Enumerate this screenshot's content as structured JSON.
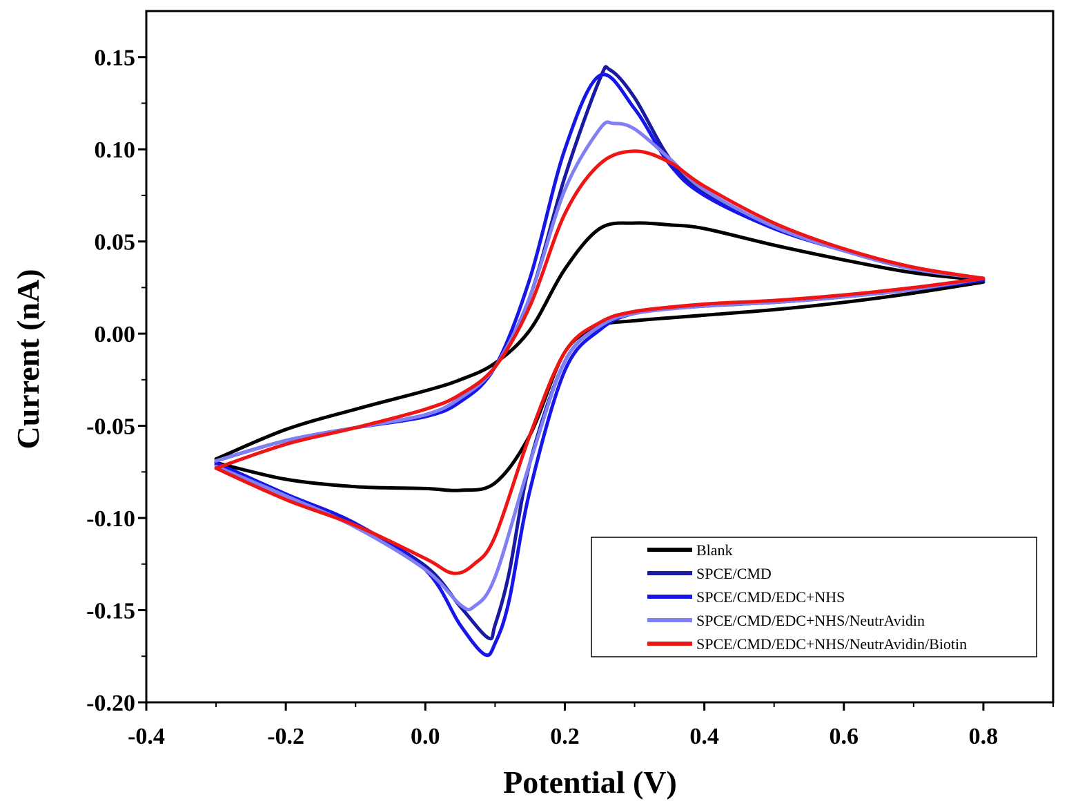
{
  "chart_data": {
    "type": "line",
    "xlabel": "Potential (V)",
    "ylabel": "Current (nA)",
    "xlim": [
      -0.4,
      0.9
    ],
    "ylim": [
      -0.2,
      0.175
    ],
    "x_ticks": [
      -0.4,
      -0.2,
      0.0,
      0.2,
      0.4,
      0.6,
      0.8
    ],
    "x_tick_labels": [
      "-0.4",
      "-0.2",
      "0.0",
      "0.2",
      "0.4",
      "0.6",
      "0.8"
    ],
    "y_ticks": [
      -0.2,
      -0.15,
      -0.1,
      -0.05,
      0.0,
      0.05,
      0.1,
      0.15
    ],
    "y_tick_labels": [
      "-0.20",
      "-0.15",
      "-0.10",
      "-0.05",
      "0.00",
      "0.05",
      "0.10",
      "0.15"
    ],
    "legend_position": "bottom-right",
    "grid": false,
    "series": [
      {
        "name": "Blank",
        "color": "#000000",
        "forward": {
          "x": [
            -0.3,
            -0.2,
            -0.1,
            0.0,
            0.05,
            0.1,
            0.15,
            0.2,
            0.25,
            0.3,
            0.35,
            0.4,
            0.5,
            0.6,
            0.7,
            0.8
          ],
          "y": [
            -0.068,
            -0.052,
            -0.041,
            -0.031,
            -0.025,
            -0.016,
            0.002,
            0.035,
            0.057,
            0.06,
            0.059,
            0.057,
            0.048,
            0.04,
            0.033,
            0.029
          ]
        },
        "reverse": {
          "x": [
            0.8,
            0.7,
            0.6,
            0.5,
            0.4,
            0.3,
            0.25,
            0.2,
            0.15,
            0.1,
            0.05,
            0.0,
            -0.1,
            -0.2,
            -0.3
          ],
          "y": [
            0.028,
            0.022,
            0.017,
            0.013,
            0.01,
            0.007,
            0.004,
            -0.01,
            -0.055,
            -0.081,
            -0.085,
            -0.084,
            -0.083,
            -0.079,
            -0.07
          ]
        }
      },
      {
        "name": "SPCE/CMD",
        "color": "#1a1aa0",
        "forward": {
          "x": [
            -0.3,
            -0.2,
            -0.1,
            0.0,
            0.05,
            0.1,
            0.15,
            0.2,
            0.25,
            0.265,
            0.3,
            0.35,
            0.4,
            0.5,
            0.6,
            0.7,
            0.8
          ],
          "y": [
            -0.069,
            -0.058,
            -0.051,
            -0.044,
            -0.035,
            -0.018,
            0.02,
            0.085,
            0.138,
            0.143,
            0.128,
            0.095,
            0.076,
            0.058,
            0.045,
            0.035,
            0.03
          ]
        },
        "reverse": {
          "x": [
            0.8,
            0.7,
            0.6,
            0.5,
            0.4,
            0.3,
            0.25,
            0.2,
            0.15,
            0.12,
            0.1,
            0.09,
            0.05,
            0.0,
            -0.1,
            -0.2,
            -0.3
          ],
          "y": [
            0.029,
            0.024,
            0.02,
            0.017,
            0.015,
            0.012,
            0.004,
            -0.015,
            -0.07,
            -0.13,
            -0.158,
            -0.165,
            -0.148,
            -0.126,
            -0.104,
            -0.087,
            -0.071
          ]
        }
      },
      {
        "name": "SPCE/CMD/EDC+NHS",
        "color": "#1616e8",
        "forward": {
          "x": [
            -0.3,
            -0.2,
            -0.1,
            0.0,
            0.05,
            0.1,
            0.15,
            0.2,
            0.25,
            0.3,
            0.35,
            0.4,
            0.5,
            0.6,
            0.7,
            0.8
          ],
          "y": [
            -0.069,
            -0.058,
            -0.051,
            -0.045,
            -0.037,
            -0.018,
            0.03,
            0.1,
            0.14,
            0.122,
            0.092,
            0.075,
            0.057,
            0.045,
            0.035,
            0.03
          ]
        },
        "reverse": {
          "x": [
            0.8,
            0.7,
            0.6,
            0.5,
            0.4,
            0.3,
            0.25,
            0.2,
            0.15,
            0.12,
            0.1,
            0.085,
            0.05,
            0.0,
            -0.1,
            -0.2,
            -0.3
          ],
          "y": [
            0.029,
            0.024,
            0.02,
            0.017,
            0.015,
            0.011,
            0.002,
            -0.02,
            -0.085,
            -0.145,
            -0.168,
            -0.174,
            -0.158,
            -0.128,
            -0.103,
            -0.087,
            -0.07
          ]
        }
      },
      {
        "name": "SPCE/CMD/EDC+NHS/NeutrAvidin",
        "color": "#8080f4",
        "forward": {
          "x": [
            -0.3,
            -0.2,
            -0.1,
            0.0,
            0.05,
            0.1,
            0.15,
            0.2,
            0.25,
            0.27,
            0.3,
            0.35,
            0.4,
            0.5,
            0.6,
            0.7,
            0.8
          ],
          "y": [
            -0.069,
            -0.058,
            -0.051,
            -0.044,
            -0.035,
            -0.018,
            0.02,
            0.078,
            0.111,
            0.114,
            0.111,
            0.095,
            0.078,
            0.058,
            0.045,
            0.035,
            0.03
          ]
        },
        "reverse": {
          "x": [
            0.8,
            0.7,
            0.6,
            0.5,
            0.4,
            0.3,
            0.25,
            0.2,
            0.15,
            0.1,
            0.07,
            0.05,
            0.0,
            -0.1,
            -0.2,
            -0.3
          ],
          "y": [
            0.03,
            0.024,
            0.02,
            0.017,
            0.015,
            0.011,
            0.004,
            -0.015,
            -0.07,
            -0.132,
            -0.148,
            -0.147,
            -0.128,
            -0.105,
            -0.088,
            -0.072
          ]
        }
      },
      {
        "name": "SPCE/CMD/EDC+NHS/NeutrAvidin/Biotin",
        "color": "#ee1515",
        "forward": {
          "x": [
            -0.3,
            -0.2,
            -0.1,
            0.0,
            0.05,
            0.1,
            0.15,
            0.2,
            0.25,
            0.3,
            0.35,
            0.4,
            0.5,
            0.6,
            0.7,
            0.8
          ],
          "y": [
            -0.073,
            -0.06,
            -0.051,
            -0.041,
            -0.033,
            -0.018,
            0.015,
            0.065,
            0.092,
            0.099,
            0.093,
            0.08,
            0.06,
            0.046,
            0.036,
            0.03
          ]
        },
        "reverse": {
          "x": [
            0.8,
            0.7,
            0.6,
            0.5,
            0.4,
            0.3,
            0.25,
            0.2,
            0.15,
            0.1,
            0.07,
            0.04,
            0.0,
            -0.1,
            -0.2,
            -0.3
          ],
          "y": [
            0.03,
            0.025,
            0.021,
            0.018,
            0.016,
            0.012,
            0.006,
            -0.01,
            -0.055,
            -0.11,
            -0.125,
            -0.13,
            -0.122,
            -0.104,
            -0.09,
            -0.073
          ]
        }
      }
    ]
  }
}
